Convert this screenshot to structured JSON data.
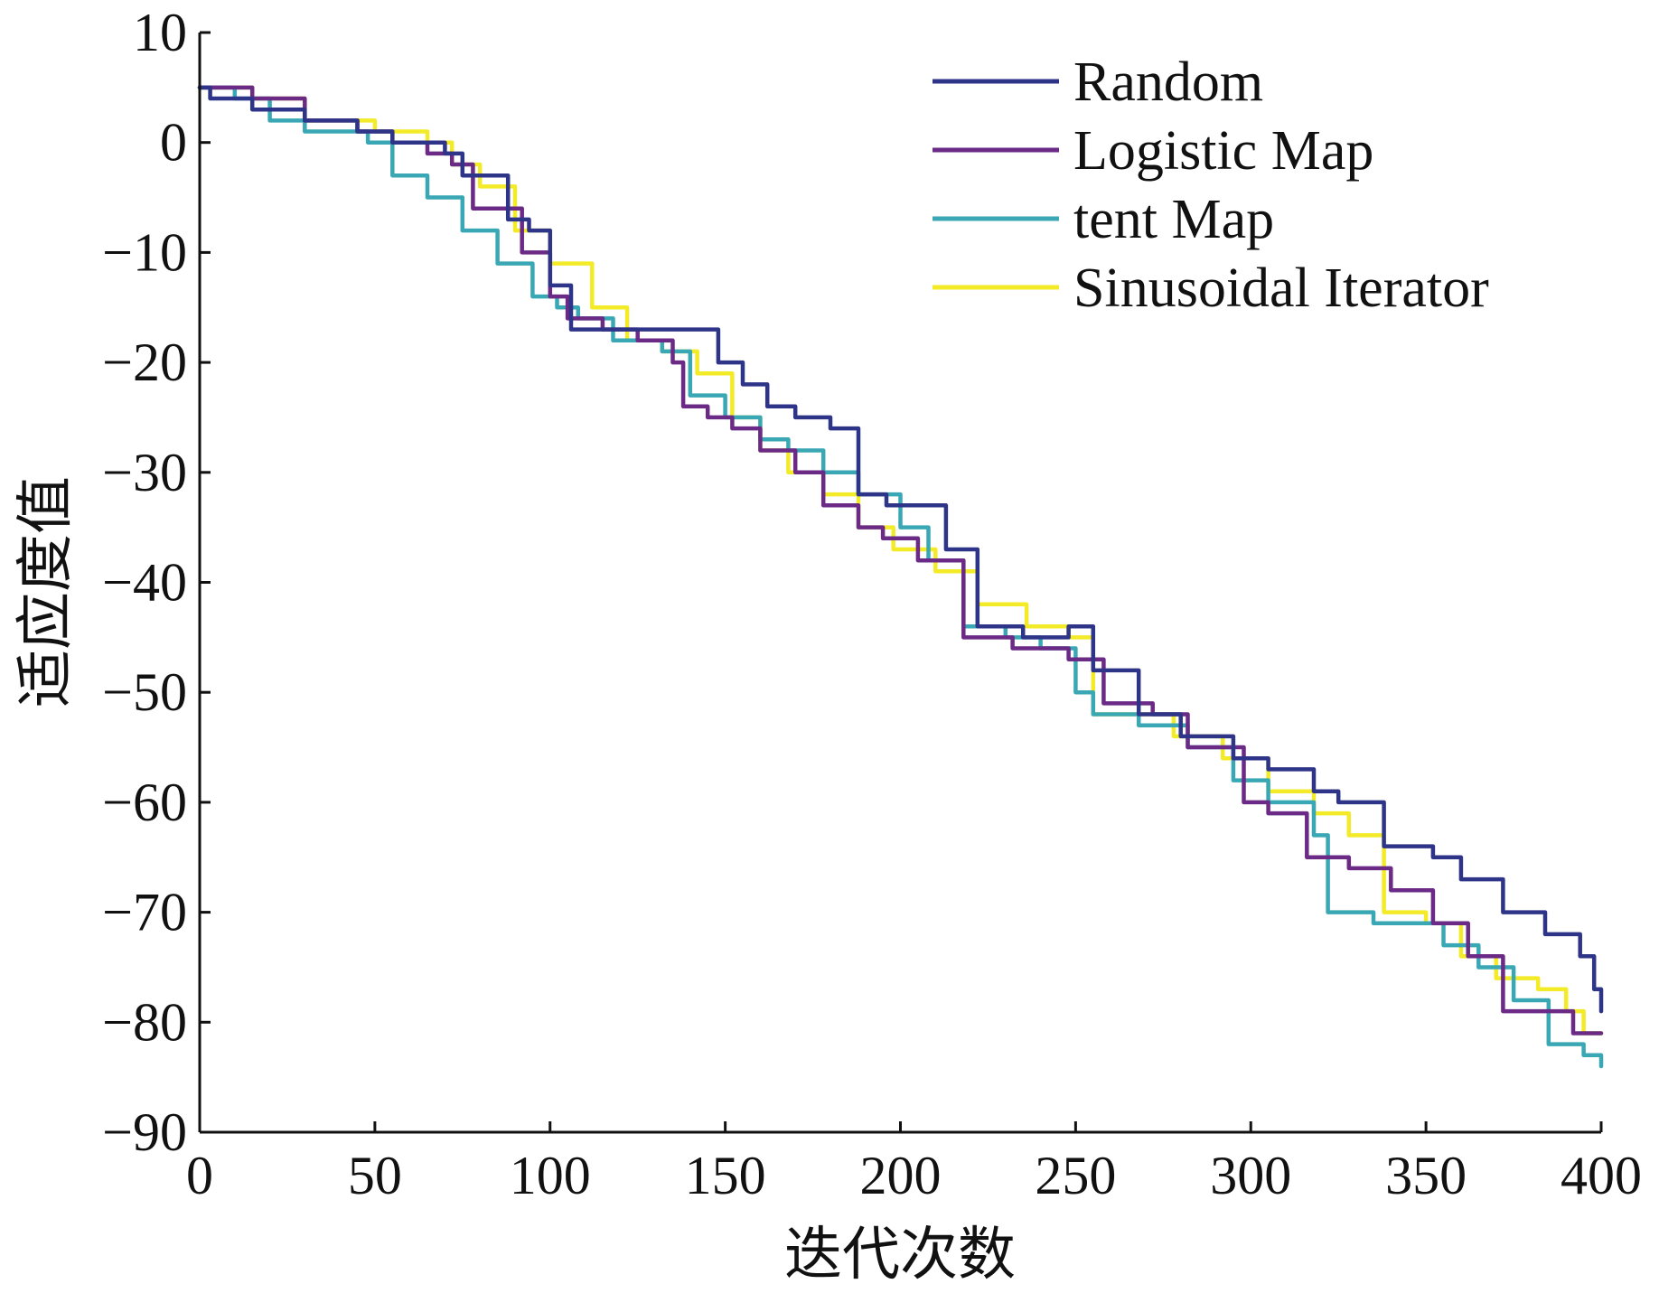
{
  "chart_data": {
    "type": "line",
    "title": "",
    "xlabel": "迭代次数",
    "ylabel": "适应度值",
    "xlim": [
      0,
      400
    ],
    "ylim": [
      -90,
      10
    ],
    "xticks": [
      0,
      50,
      100,
      150,
      200,
      250,
      300,
      350,
      400
    ],
    "yticks": [
      10,
      0,
      -10,
      -20,
      -30,
      -40,
      -50,
      -60,
      -70,
      -80,
      -90
    ],
    "ytick_labels": [
      "10",
      "0",
      "−10",
      "−20",
      "−30",
      "−40",
      "−50",
      "−60",
      "−70",
      "−80",
      "−90"
    ],
    "grid": false,
    "legend_position": "top-right",
    "series": [
      {
        "name": "Random",
        "color": "#2e3488",
        "x": [
          0,
          3,
          15,
          30,
          45,
          55,
          70,
          75,
          88,
          94,
          100,
          106,
          120,
          140,
          148,
          155,
          162,
          170,
          180,
          188,
          196,
          205,
          213,
          222,
          235,
          248,
          255,
          268,
          280,
          295,
          305,
          318,
          325,
          338,
          352,
          360,
          372,
          384,
          394,
          398,
          400
        ],
        "y": [
          5,
          4,
          3,
          2,
          1,
          0,
          -1,
          -3,
          -7,
          -8,
          -13,
          -17,
          -17,
          -17,
          -20,
          -22,
          -24,
          -25,
          -26,
          -32,
          -33,
          -33,
          -37,
          -44,
          -45,
          -44,
          -48,
          -52,
          -54,
          -56,
          -57,
          -59,
          -60,
          -64,
          -65,
          -67,
          -70,
          -72,
          -74,
          -77,
          -79
        ]
      },
      {
        "name": "Logistic Map",
        "color": "#6a2a86",
        "x": [
          0,
          15,
          30,
          45,
          55,
          65,
          72,
          78,
          92,
          100,
          105,
          115,
          125,
          135,
          138,
          145,
          152,
          160,
          170,
          178,
          188,
          195,
          205,
          218,
          232,
          248,
          258,
          272,
          282,
          298,
          305,
          316,
          328,
          340,
          352,
          362,
          372,
          384,
          392,
          398,
          400
        ],
        "y": [
          5,
          4,
          2,
          1,
          0,
          -1,
          -2,
          -6,
          -10,
          -14,
          -16,
          -17,
          -18,
          -20,
          -24,
          -25,
          -26,
          -28,
          -30,
          -33,
          -35,
          -36,
          -38,
          -45,
          -46,
          -47,
          -51,
          -52,
          -55,
          -60,
          -61,
          -65,
          -66,
          -68,
          -71,
          -74,
          -79,
          -79,
          -81,
          -81,
          -81
        ]
      },
      {
        "name": "tent Map",
        "color": "#3aa7b5",
        "x": [
          0,
          10,
          20,
          30,
          40,
          48,
          55,
          65,
          75,
          85,
          95,
          102,
          108,
          118,
          132,
          140,
          150,
          160,
          168,
          178,
          188,
          200,
          208,
          218,
          230,
          240,
          250,
          255,
          268,
          282,
          295,
          305,
          318,
          322,
          335,
          348,
          355,
          365,
          375,
          385,
          395,
          400
        ],
        "y": [
          5,
          4,
          2,
          1,
          1,
          0,
          -3,
          -5,
          -8,
          -11,
          -14,
          -15,
          -16,
          -18,
          -19,
          -23,
          -25,
          -27,
          -28,
          -30,
          -32,
          -35,
          -38,
          -44,
          -45,
          -46,
          -50,
          -52,
          -53,
          -55,
          -58,
          -60,
          -63,
          -70,
          -71,
          -71,
          -73,
          -75,
          -78,
          -82,
          -83,
          -84
        ]
      },
      {
        "name": "Sinusoidal Iterator",
        "color": "#f3ea28",
        "x": [
          0,
          15,
          30,
          50,
          65,
          72,
          80,
          90,
          100,
          112,
          122,
          132,
          142,
          152,
          160,
          168,
          178,
          188,
          198,
          210,
          222,
          236,
          248,
          255,
          265,
          278,
          292,
          305,
          318,
          328,
          338,
          350,
          360,
          370,
          382,
          390,
          395,
          400
        ],
        "y": [
          5,
          4,
          2,
          1,
          0,
          -2,
          -4,
          -8,
          -11,
          -15,
          -18,
          -19,
          -21,
          -25,
          -28,
          -30,
          -32,
          -35,
          -37,
          -39,
          -42,
          -44,
          -45,
          -52,
          -52,
          -54,
          -56,
          -59,
          -61,
          -63,
          -70,
          -71,
          -74,
          -76,
          -77,
          -79,
          -81,
          -81
        ]
      }
    ]
  }
}
